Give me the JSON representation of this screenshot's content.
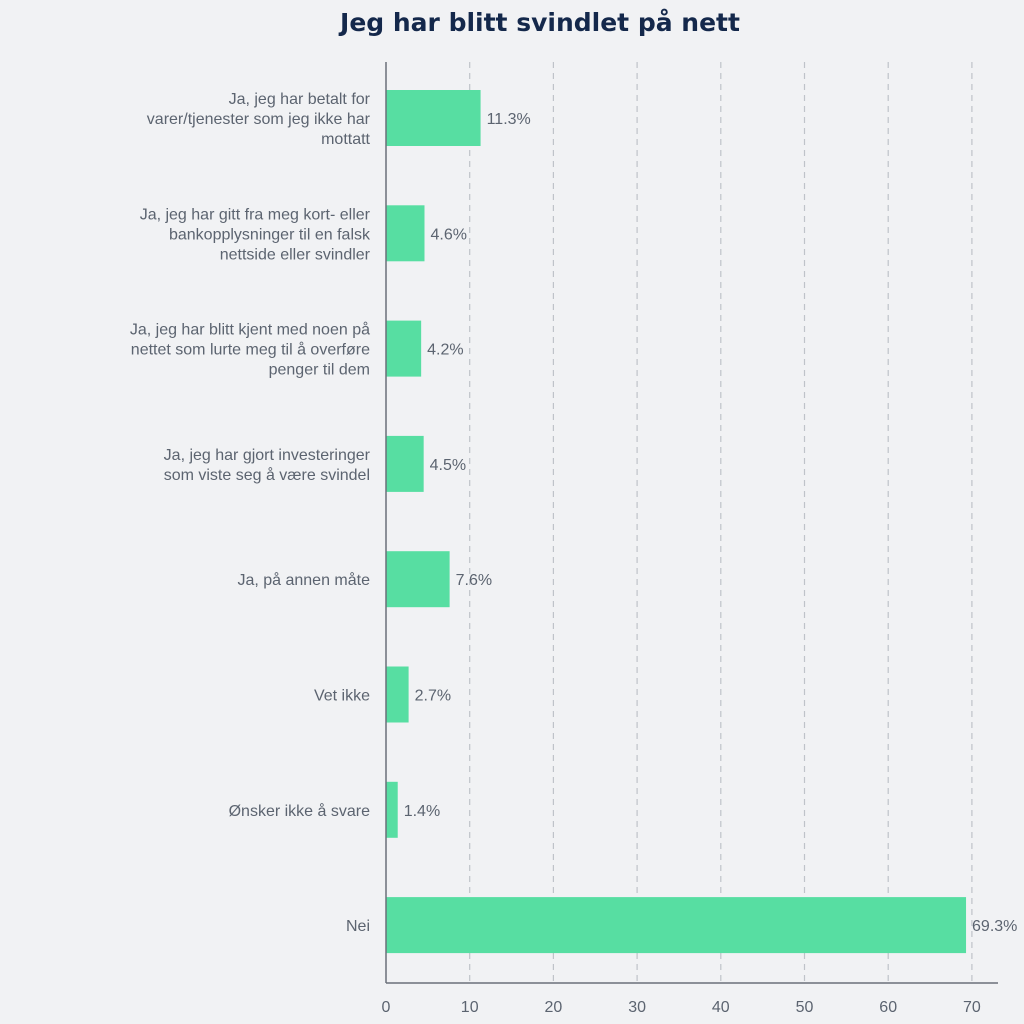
{
  "chart_data": {
    "type": "bar",
    "orientation": "horizontal",
    "title": "Jeg har blitt svindlet på nett",
    "categories": [
      [
        "Ja, jeg har betalt for",
        "varer/tjenester som jeg ikke har",
        "mottatt"
      ],
      [
        "Ja, jeg har gitt fra meg kort- eller",
        "bankopplysninger til en falsk",
        "nettside eller svindler"
      ],
      [
        "Ja, jeg har blitt kjent med noen på",
        "nettet som lurte meg til å overføre",
        "penger til dem"
      ],
      [
        "Ja, jeg har gjort investeringer",
        "som viste seg å være svindel"
      ],
      [
        "Ja, på annen måte"
      ],
      [
        "Vet ikke"
      ],
      [
        "Ønsker ikke å svare"
      ],
      [
        "Nei"
      ]
    ],
    "values": [
      11.3,
      4.6,
      4.2,
      4.5,
      7.6,
      2.7,
      1.4,
      69.3
    ],
    "value_labels": [
      "11.3%",
      "4.6%",
      "4.2%",
      "4.5%",
      "7.6%",
      "2.7%",
      "1.4%",
      "69.3%"
    ],
    "xticks": [
      "0",
      "10",
      "20",
      "30",
      "40",
      "50",
      "60",
      "70"
    ],
    "xlim": [
      0,
      70
    ],
    "xlabel": "",
    "ylabel": "",
    "grid": "vertical dashed",
    "colors": {
      "bar": "#57dea2",
      "grid": "#bfc3c9",
      "axis": "#6b7079",
      "text": "#5c6470",
      "title": "#14284b"
    }
  }
}
